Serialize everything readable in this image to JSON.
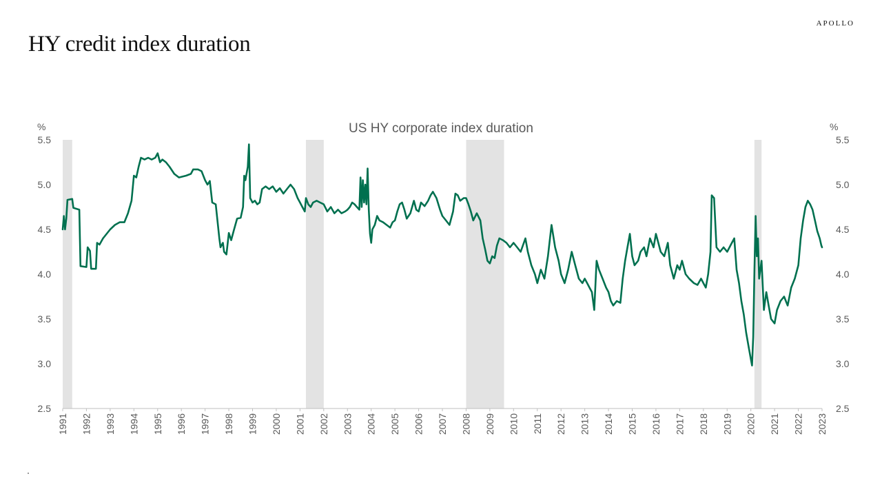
{
  "slide": {
    "title": "HY credit index duration",
    "brand": "APOLLO"
  },
  "chart_data": {
    "type": "line",
    "title": "US HY corporate index duration",
    "ylabel_left": "%",
    "ylabel_right": "%",
    "xlim": [
      1991,
      2023
    ],
    "ylim": [
      2.5,
      5.5
    ],
    "yticks": [
      2.5,
      3.0,
      3.5,
      4.0,
      4.5,
      5.0,
      5.5
    ],
    "ytick_labels": [
      "2.5",
      "3.0",
      "3.5",
      "4.0",
      "4.5",
      "5.0",
      "5.5"
    ],
    "xtick_labels": [
      "1991",
      "1992",
      "1993",
      "1994",
      "1995",
      "1996",
      "1997",
      "1998",
      "1999",
      "2000",
      "2001",
      "2002",
      "2003",
      "2004",
      "2005",
      "2006",
      "2007",
      "2008",
      "2009",
      "2010",
      "2011",
      "2012",
      "2013",
      "2014",
      "2015",
      "2016",
      "2017",
      "2018",
      "2019",
      "2020",
      "2021",
      "2022",
      "2023"
    ],
    "recessions": [
      [
        1991.0,
        1991.4
      ],
      [
        2001.25,
        2002.0
      ],
      [
        2008.0,
        2009.6
      ],
      [
        2020.15,
        2020.45
      ]
    ],
    "line_color": "#00704f",
    "recession_color": "#e3e3e3",
    "series": [
      {
        "name": "US HY corporate index duration",
        "points": [
          [
            1991.0,
            4.5
          ],
          [
            1991.05,
            4.65
          ],
          [
            1991.1,
            4.5
          ],
          [
            1991.15,
            4.62
          ],
          [
            1991.2,
            4.83
          ],
          [
            1991.4,
            4.84
          ],
          [
            1991.45,
            4.74
          ],
          [
            1991.7,
            4.72
          ],
          [
            1991.75,
            4.09
          ],
          [
            1992.0,
            4.08
          ],
          [
            1992.05,
            4.3
          ],
          [
            1992.15,
            4.26
          ],
          [
            1992.2,
            4.06
          ],
          [
            1992.4,
            4.06
          ],
          [
            1992.45,
            4.35
          ],
          [
            1992.55,
            4.33
          ],
          [
            1992.7,
            4.4
          ],
          [
            1992.85,
            4.45
          ],
          [
            1993.0,
            4.5
          ],
          [
            1993.2,
            4.55
          ],
          [
            1993.4,
            4.58
          ],
          [
            1993.6,
            4.58
          ],
          [
            1993.75,
            4.68
          ],
          [
            1993.9,
            4.82
          ],
          [
            1994.0,
            5.1
          ],
          [
            1994.1,
            5.08
          ],
          [
            1994.2,
            5.2
          ],
          [
            1994.3,
            5.3
          ],
          [
            1994.45,
            5.28
          ],
          [
            1994.6,
            5.3
          ],
          [
            1994.75,
            5.28
          ],
          [
            1994.9,
            5.3
          ],
          [
            1995.0,
            5.35
          ],
          [
            1995.1,
            5.25
          ],
          [
            1995.2,
            5.28
          ],
          [
            1995.35,
            5.25
          ],
          [
            1995.5,
            5.2
          ],
          [
            1995.7,
            5.12
          ],
          [
            1995.9,
            5.08
          ],
          [
            1996.2,
            5.1
          ],
          [
            1996.4,
            5.12
          ],
          [
            1996.5,
            5.17
          ],
          [
            1996.7,
            5.17
          ],
          [
            1996.85,
            5.15
          ],
          [
            1997.0,
            5.05
          ],
          [
            1997.1,
            5.0
          ],
          [
            1997.2,
            5.04
          ],
          [
            1997.3,
            4.8
          ],
          [
            1997.45,
            4.78
          ],
          [
            1997.6,
            4.4
          ],
          [
            1997.65,
            4.3
          ],
          [
            1997.75,
            4.35
          ],
          [
            1997.8,
            4.25
          ],
          [
            1997.9,
            4.22
          ],
          [
            1998.0,
            4.46
          ],
          [
            1998.1,
            4.38
          ],
          [
            1998.2,
            4.48
          ],
          [
            1998.35,
            4.62
          ],
          [
            1998.5,
            4.63
          ],
          [
            1998.6,
            4.75
          ],
          [
            1998.65,
            5.1
          ],
          [
            1998.7,
            5.05
          ],
          [
            1998.8,
            5.2
          ],
          [
            1998.85,
            5.45
          ],
          [
            1998.9,
            4.85
          ],
          [
            1999.0,
            4.8
          ],
          [
            1999.1,
            4.82
          ],
          [
            1999.2,
            4.78
          ],
          [
            1999.3,
            4.8
          ],
          [
            1999.4,
            4.95
          ],
          [
            1999.55,
            4.98
          ],
          [
            1999.7,
            4.95
          ],
          [
            1999.85,
            4.98
          ],
          [
            2000.0,
            4.92
          ],
          [
            2000.15,
            4.96
          ],
          [
            2000.3,
            4.9
          ],
          [
            2000.45,
            4.95
          ],
          [
            2000.6,
            5.0
          ],
          [
            2000.75,
            4.95
          ],
          [
            2000.9,
            4.85
          ],
          [
            2001.0,
            4.8
          ],
          [
            2001.1,
            4.75
          ],
          [
            2001.2,
            4.7
          ],
          [
            2001.25,
            4.85
          ],
          [
            2001.35,
            4.78
          ],
          [
            2001.45,
            4.75
          ],
          [
            2001.55,
            4.8
          ],
          [
            2001.7,
            4.82
          ],
          [
            2001.85,
            4.8
          ],
          [
            2002.0,
            4.78
          ],
          [
            2002.15,
            4.7
          ],
          [
            2002.3,
            4.75
          ],
          [
            2002.45,
            4.68
          ],
          [
            2002.6,
            4.72
          ],
          [
            2002.75,
            4.68
          ],
          [
            2002.9,
            4.7
          ],
          [
            2003.0,
            4.72
          ],
          [
            2003.1,
            4.75
          ],
          [
            2003.2,
            4.8
          ],
          [
            2003.3,
            4.78
          ],
          [
            2003.4,
            4.75
          ],
          [
            2003.5,
            4.72
          ],
          [
            2003.55,
            5.08
          ],
          [
            2003.6,
            4.75
          ],
          [
            2003.65,
            5.05
          ],
          [
            2003.7,
            4.8
          ],
          [
            2003.75,
            5.0
          ],
          [
            2003.8,
            4.78
          ],
          [
            2003.85,
            5.18
          ],
          [
            2003.9,
            4.72
          ],
          [
            2003.95,
            4.45
          ],
          [
            2004.0,
            4.35
          ],
          [
            2004.05,
            4.5
          ],
          [
            2004.15,
            4.55
          ],
          [
            2004.25,
            4.65
          ],
          [
            2004.35,
            4.6
          ],
          [
            2004.5,
            4.58
          ],
          [
            2004.65,
            4.55
          ],
          [
            2004.8,
            4.52
          ],
          [
            2004.9,
            4.58
          ],
          [
            2005.0,
            4.6
          ],
          [
            2005.1,
            4.7
          ],
          [
            2005.2,
            4.78
          ],
          [
            2005.3,
            4.8
          ],
          [
            2005.4,
            4.72
          ],
          [
            2005.5,
            4.62
          ],
          [
            2005.65,
            4.68
          ],
          [
            2005.8,
            4.82
          ],
          [
            2005.9,
            4.72
          ],
          [
            2006.0,
            4.7
          ],
          [
            2006.1,
            4.8
          ],
          [
            2006.25,
            4.76
          ],
          [
            2006.4,
            4.82
          ],
          [
            2006.5,
            4.88
          ],
          [
            2006.6,
            4.92
          ],
          [
            2006.75,
            4.85
          ],
          [
            2006.9,
            4.72
          ],
          [
            2007.0,
            4.65
          ],
          [
            2007.15,
            4.6
          ],
          [
            2007.3,
            4.55
          ],
          [
            2007.45,
            4.7
          ],
          [
            2007.55,
            4.9
          ],
          [
            2007.65,
            4.88
          ],
          [
            2007.75,
            4.82
          ],
          [
            2007.9,
            4.85
          ],
          [
            2008.0,
            4.85
          ],
          [
            2008.1,
            4.78
          ],
          [
            2008.2,
            4.7
          ],
          [
            2008.3,
            4.6
          ],
          [
            2008.45,
            4.68
          ],
          [
            2008.6,
            4.6
          ],
          [
            2008.7,
            4.4
          ],
          [
            2008.8,
            4.28
          ],
          [
            2008.9,
            4.15
          ],
          [
            2009.0,
            4.12
          ],
          [
            2009.1,
            4.2
          ],
          [
            2009.2,
            4.18
          ],
          [
            2009.3,
            4.32
          ],
          [
            2009.4,
            4.4
          ],
          [
            2009.55,
            4.38
          ],
          [
            2009.7,
            4.35
          ],
          [
            2009.85,
            4.3
          ],
          [
            2010.0,
            4.35
          ],
          [
            2010.15,
            4.3
          ],
          [
            2010.3,
            4.25
          ],
          [
            2010.5,
            4.4
          ],
          [
            2010.6,
            4.25
          ],
          [
            2010.75,
            4.1
          ],
          [
            2010.9,
            4.0
          ],
          [
            2011.0,
            3.9
          ],
          [
            2011.15,
            4.05
          ],
          [
            2011.3,
            3.95
          ],
          [
            2011.45,
            4.2
          ],
          [
            2011.6,
            4.55
          ],
          [
            2011.75,
            4.3
          ],
          [
            2011.9,
            4.15
          ],
          [
            2012.0,
            4.0
          ],
          [
            2012.15,
            3.9
          ],
          [
            2012.3,
            4.05
          ],
          [
            2012.45,
            4.25
          ],
          [
            2012.6,
            4.1
          ],
          [
            2012.75,
            3.95
          ],
          [
            2012.9,
            3.9
          ],
          [
            2013.0,
            3.95
          ],
          [
            2013.1,
            3.9
          ],
          [
            2013.2,
            3.85
          ],
          [
            2013.3,
            3.8
          ],
          [
            2013.4,
            3.6
          ],
          [
            2013.5,
            4.15
          ],
          [
            2013.6,
            4.05
          ],
          [
            2013.75,
            3.95
          ],
          [
            2013.9,
            3.85
          ],
          [
            2014.0,
            3.8
          ],
          [
            2014.1,
            3.7
          ],
          [
            2014.2,
            3.65
          ],
          [
            2014.35,
            3.7
          ],
          [
            2014.5,
            3.68
          ],
          [
            2014.6,
            3.95
          ],
          [
            2014.7,
            4.15
          ],
          [
            2014.8,
            4.3
          ],
          [
            2014.9,
            4.45
          ],
          [
            2015.0,
            4.2
          ],
          [
            2015.1,
            4.1
          ],
          [
            2015.25,
            4.15
          ],
          [
            2015.35,
            4.25
          ],
          [
            2015.5,
            4.3
          ],
          [
            2015.6,
            4.2
          ],
          [
            2015.75,
            4.4
          ],
          [
            2015.9,
            4.3
          ],
          [
            2016.0,
            4.45
          ],
          [
            2016.1,
            4.35
          ],
          [
            2016.2,
            4.25
          ],
          [
            2016.35,
            4.2
          ],
          [
            2016.5,
            4.35
          ],
          [
            2016.6,
            4.1
          ],
          [
            2016.75,
            3.95
          ],
          [
            2016.9,
            4.1
          ],
          [
            2017.0,
            4.05
          ],
          [
            2017.1,
            4.15
          ],
          [
            2017.25,
            4.0
          ],
          [
            2017.4,
            3.95
          ],
          [
            2017.6,
            3.9
          ],
          [
            2017.75,
            3.88
          ],
          [
            2017.9,
            3.95
          ],
          [
            2018.0,
            3.9
          ],
          [
            2018.1,
            3.85
          ],
          [
            2018.2,
            4.0
          ],
          [
            2018.3,
            4.25
          ],
          [
            2018.35,
            4.88
          ],
          [
            2018.45,
            4.85
          ],
          [
            2018.55,
            4.3
          ],
          [
            2018.7,
            4.25
          ],
          [
            2018.85,
            4.3
          ],
          [
            2019.0,
            4.25
          ],
          [
            2019.1,
            4.3
          ],
          [
            2019.2,
            4.35
          ],
          [
            2019.3,
            4.4
          ],
          [
            2019.4,
            4.05
          ],
          [
            2019.5,
            3.9
          ],
          [
            2019.6,
            3.7
          ],
          [
            2019.7,
            3.55
          ],
          [
            2019.8,
            3.35
          ],
          [
            2019.9,
            3.2
          ],
          [
            2020.0,
            3.05
          ],
          [
            2020.05,
            2.98
          ],
          [
            2020.1,
            3.3
          ],
          [
            2020.15,
            4.05
          ],
          [
            2020.2,
            4.65
          ],
          [
            2020.25,
            4.2
          ],
          [
            2020.3,
            4.4
          ],
          [
            2020.35,
            3.95
          ],
          [
            2020.45,
            4.15
          ],
          [
            2020.55,
            3.6
          ],
          [
            2020.65,
            3.8
          ],
          [
            2020.75,
            3.65
          ],
          [
            2020.85,
            3.5
          ],
          [
            2021.0,
            3.45
          ],
          [
            2021.1,
            3.6
          ],
          [
            2021.25,
            3.7
          ],
          [
            2021.4,
            3.75
          ],
          [
            2021.55,
            3.65
          ],
          [
            2021.7,
            3.85
          ],
          [
            2021.85,
            3.95
          ],
          [
            2022.0,
            4.1
          ],
          [
            2022.1,
            4.4
          ],
          [
            2022.2,
            4.6
          ],
          [
            2022.3,
            4.75
          ],
          [
            2022.4,
            4.82
          ],
          [
            2022.5,
            4.78
          ],
          [
            2022.6,
            4.72
          ],
          [
            2022.7,
            4.6
          ],
          [
            2022.8,
            4.48
          ],
          [
            2022.9,
            4.4
          ],
          [
            2022.97,
            4.32
          ],
          [
            2023.0,
            4.3
          ]
        ]
      }
    ]
  }
}
